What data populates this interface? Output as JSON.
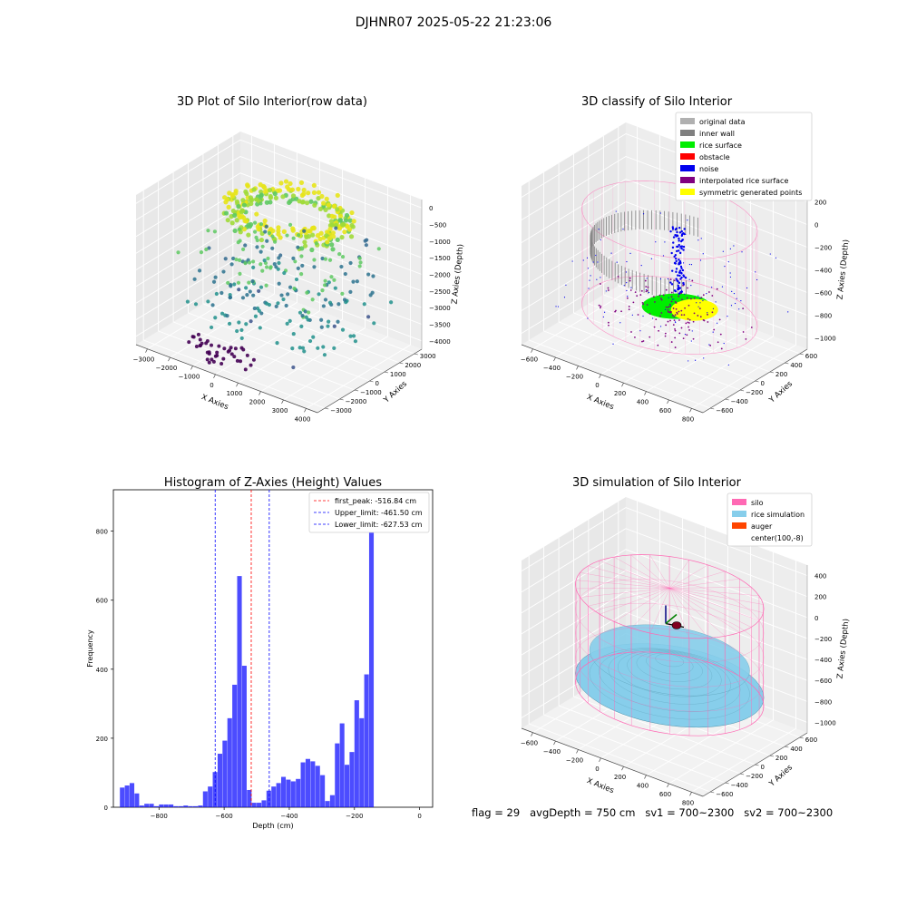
{
  "suptitle": "DJHNR07 2025-05-22 21:23:06",
  "footer": "flag = 29   avgDepth = 750 cm   sv1 = 700~2300   sv2 = 700~2300",
  "chart_data": [
    {
      "type": "scatter",
      "projection": "3d",
      "title": "3D Plot of Silo Interior(row data)",
      "xlabel": "X Axies",
      "ylabel": "Y Axies",
      "zlabel": "Z Axies (Depth)",
      "xticks": [
        "−3000",
        "−2000",
        "−1000",
        "0",
        "1000",
        "2000",
        "3000",
        "4000"
      ],
      "yticks": [
        "−3000",
        "−2000",
        "−1000",
        "0",
        "1000",
        "2000",
        "3000"
      ],
      "zticks": [
        "0",
        "−500",
        "−1000",
        "−1500",
        "−2000",
        "−2500",
        "−3000",
        "−3500",
        "−4000"
      ],
      "xlim": [
        -3200,
        4200
      ],
      "ylim": [
        -3500,
        3500
      ],
      "zlim": [
        -4200,
        200
      ],
      "colormap": "viridis"
    },
    {
      "type": "scatter",
      "projection": "3d",
      "title": "3D classify of Silo Interior",
      "xlabel": "X Axies",
      "ylabel": "Y Axies",
      "zlabel": "Z Axies (Depth)",
      "xticks": [
        "−600",
        "−400",
        "−200",
        "0",
        "200",
        "400",
        "600",
        "800"
      ],
      "yticks": [
        "−600",
        "−400",
        "−200",
        "0",
        "200",
        "400",
        "600"
      ],
      "zticks": [
        "200",
        "0",
        "−200",
        "−400",
        "−600",
        "−800",
        "−1000"
      ],
      "legend_position": "upper-right",
      "legend": [
        {
          "label": "original data",
          "color": "#b0b0b0"
        },
        {
          "label": "inner wall",
          "color": "#808080"
        },
        {
          "label": "rice surface",
          "color": "#00ee00"
        },
        {
          "label": "obstacle",
          "color": "#ff0000"
        },
        {
          "label": "noise",
          "color": "#0000ee"
        },
        {
          "label": "interpolated rice surface",
          "color": "#800080"
        },
        {
          "label": "symmetric generated points",
          "color": "#ffff00"
        }
      ]
    },
    {
      "type": "bar",
      "title": "Histogram of Z-Axies (Height) Values",
      "xlabel": "Depth (cm)",
      "ylabel": "Frequency",
      "xlim": [
        -940,
        40
      ],
      "ylim": [
        0,
        920
      ],
      "xticks": [
        -800,
        -600,
        -400,
        -200,
        0
      ],
      "yticks": [
        0,
        200,
        400,
        600,
        800
      ],
      "bar_color": "#0000ff",
      "bins": [
        {
          "x0": -920,
          "x1": -905,
          "count": 57
        },
        {
          "x0": -905,
          "x1": -890,
          "count": 63
        },
        {
          "x0": -890,
          "x1": -875,
          "count": 70
        },
        {
          "x0": -875,
          "x1": -860,
          "count": 40
        },
        {
          "x0": -860,
          "x1": -845,
          "count": 5
        },
        {
          "x0": -845,
          "x1": -830,
          "count": 10
        },
        {
          "x0": -830,
          "x1": -815,
          "count": 10
        },
        {
          "x0": -815,
          "x1": -800,
          "count": 3
        },
        {
          "x0": -800,
          "x1": -785,
          "count": 8
        },
        {
          "x0": -785,
          "x1": -770,
          "count": 8
        },
        {
          "x0": -770,
          "x1": -755,
          "count": 8
        },
        {
          "x0": -755,
          "x1": -740,
          "count": 3
        },
        {
          "x0": -740,
          "x1": -725,
          "count": 3
        },
        {
          "x0": -725,
          "x1": -710,
          "count": 5
        },
        {
          "x0": -710,
          "x1": -695,
          "count": 3
        },
        {
          "x0": -695,
          "x1": -680,
          "count": 3
        },
        {
          "x0": -680,
          "x1": -665,
          "count": 5
        },
        {
          "x0": -665,
          "x1": -650,
          "count": 46
        },
        {
          "x0": -650,
          "x1": -635,
          "count": 60
        },
        {
          "x0": -635,
          "x1": -620,
          "count": 102
        },
        {
          "x0": -620,
          "x1": -605,
          "count": 155
        },
        {
          "x0": -605,
          "x1": -590,
          "count": 193
        },
        {
          "x0": -590,
          "x1": -575,
          "count": 258
        },
        {
          "x0": -575,
          "x1": -560,
          "count": 355
        },
        {
          "x0": -560,
          "x1": -545,
          "count": 670
        },
        {
          "x0": -545,
          "x1": -530,
          "count": 410
        },
        {
          "x0": -530,
          "x1": -515,
          "count": 50
        },
        {
          "x0": -515,
          "x1": -500,
          "count": 13
        },
        {
          "x0": -500,
          "x1": -485,
          "count": 13
        },
        {
          "x0": -485,
          "x1": -470,
          "count": 20
        },
        {
          "x0": -470,
          "x1": -455,
          "count": 48
        },
        {
          "x0": -455,
          "x1": -440,
          "count": 60
        },
        {
          "x0": -440,
          "x1": -425,
          "count": 70
        },
        {
          "x0": -425,
          "x1": -410,
          "count": 88
        },
        {
          "x0": -410,
          "x1": -395,
          "count": 80
        },
        {
          "x0": -395,
          "x1": -380,
          "count": 75
        },
        {
          "x0": -380,
          "x1": -365,
          "count": 82
        },
        {
          "x0": -365,
          "x1": -350,
          "count": 130
        },
        {
          "x0": -350,
          "x1": -335,
          "count": 140
        },
        {
          "x0": -335,
          "x1": -320,
          "count": 133
        },
        {
          "x0": -320,
          "x1": -305,
          "count": 120
        },
        {
          "x0": -305,
          "x1": -290,
          "count": 93
        },
        {
          "x0": -290,
          "x1": -275,
          "count": 18
        },
        {
          "x0": -275,
          "x1": -260,
          "count": 35
        },
        {
          "x0": -260,
          "x1": -245,
          "count": 185
        },
        {
          "x0": -245,
          "x1": -230,
          "count": 243
        },
        {
          "x0": -230,
          "x1": -215,
          "count": 123
        },
        {
          "x0": -215,
          "x1": -200,
          "count": 160
        },
        {
          "x0": -200,
          "x1": -185,
          "count": 310
        },
        {
          "x0": -185,
          "x1": -170,
          "count": 258
        },
        {
          "x0": -170,
          "x1": -155,
          "count": 385
        },
        {
          "x0": -155,
          "x1": -140,
          "count": 870
        }
      ],
      "vlines": [
        {
          "label": "first_peak: -516.84 cm",
          "x": -516.84,
          "color": "#ff0000"
        },
        {
          "label": "Upper_limit: -461.50 cm",
          "x": -461.5,
          "color": "#0000ff"
        },
        {
          "label": "Lower_limit: -627.53 cm",
          "x": -627.53,
          "color": "#0000ff"
        }
      ],
      "legend_position": "upper-right"
    },
    {
      "type": "surface",
      "projection": "3d",
      "title": "3D simulation of Silo Interior",
      "xlabel": "X Axies",
      "ylabel": "Y Axies",
      "zlabel": "Z Axies (Depth)",
      "xticks": [
        "−600",
        "−400",
        "−200",
        "0",
        "200",
        "400",
        "600",
        "800"
      ],
      "yticks": [
        "−600",
        "−400",
        "−200",
        "0",
        "200",
        "400",
        "600"
      ],
      "zticks": [
        "400",
        "200",
        "0",
        "−200",
        "−400",
        "−600",
        "−800",
        "−1000"
      ],
      "legend_position": "upper-right",
      "legend": [
        {
          "label": "silo",
          "color": "#ff69b4"
        },
        {
          "label": "rice simulation",
          "color": "#87ceeb"
        },
        {
          "label": "auger",
          "color": "#ff4500"
        },
        {
          "label": "center(100,-8)",
          "color": "#ffffff"
        }
      ]
    }
  ]
}
